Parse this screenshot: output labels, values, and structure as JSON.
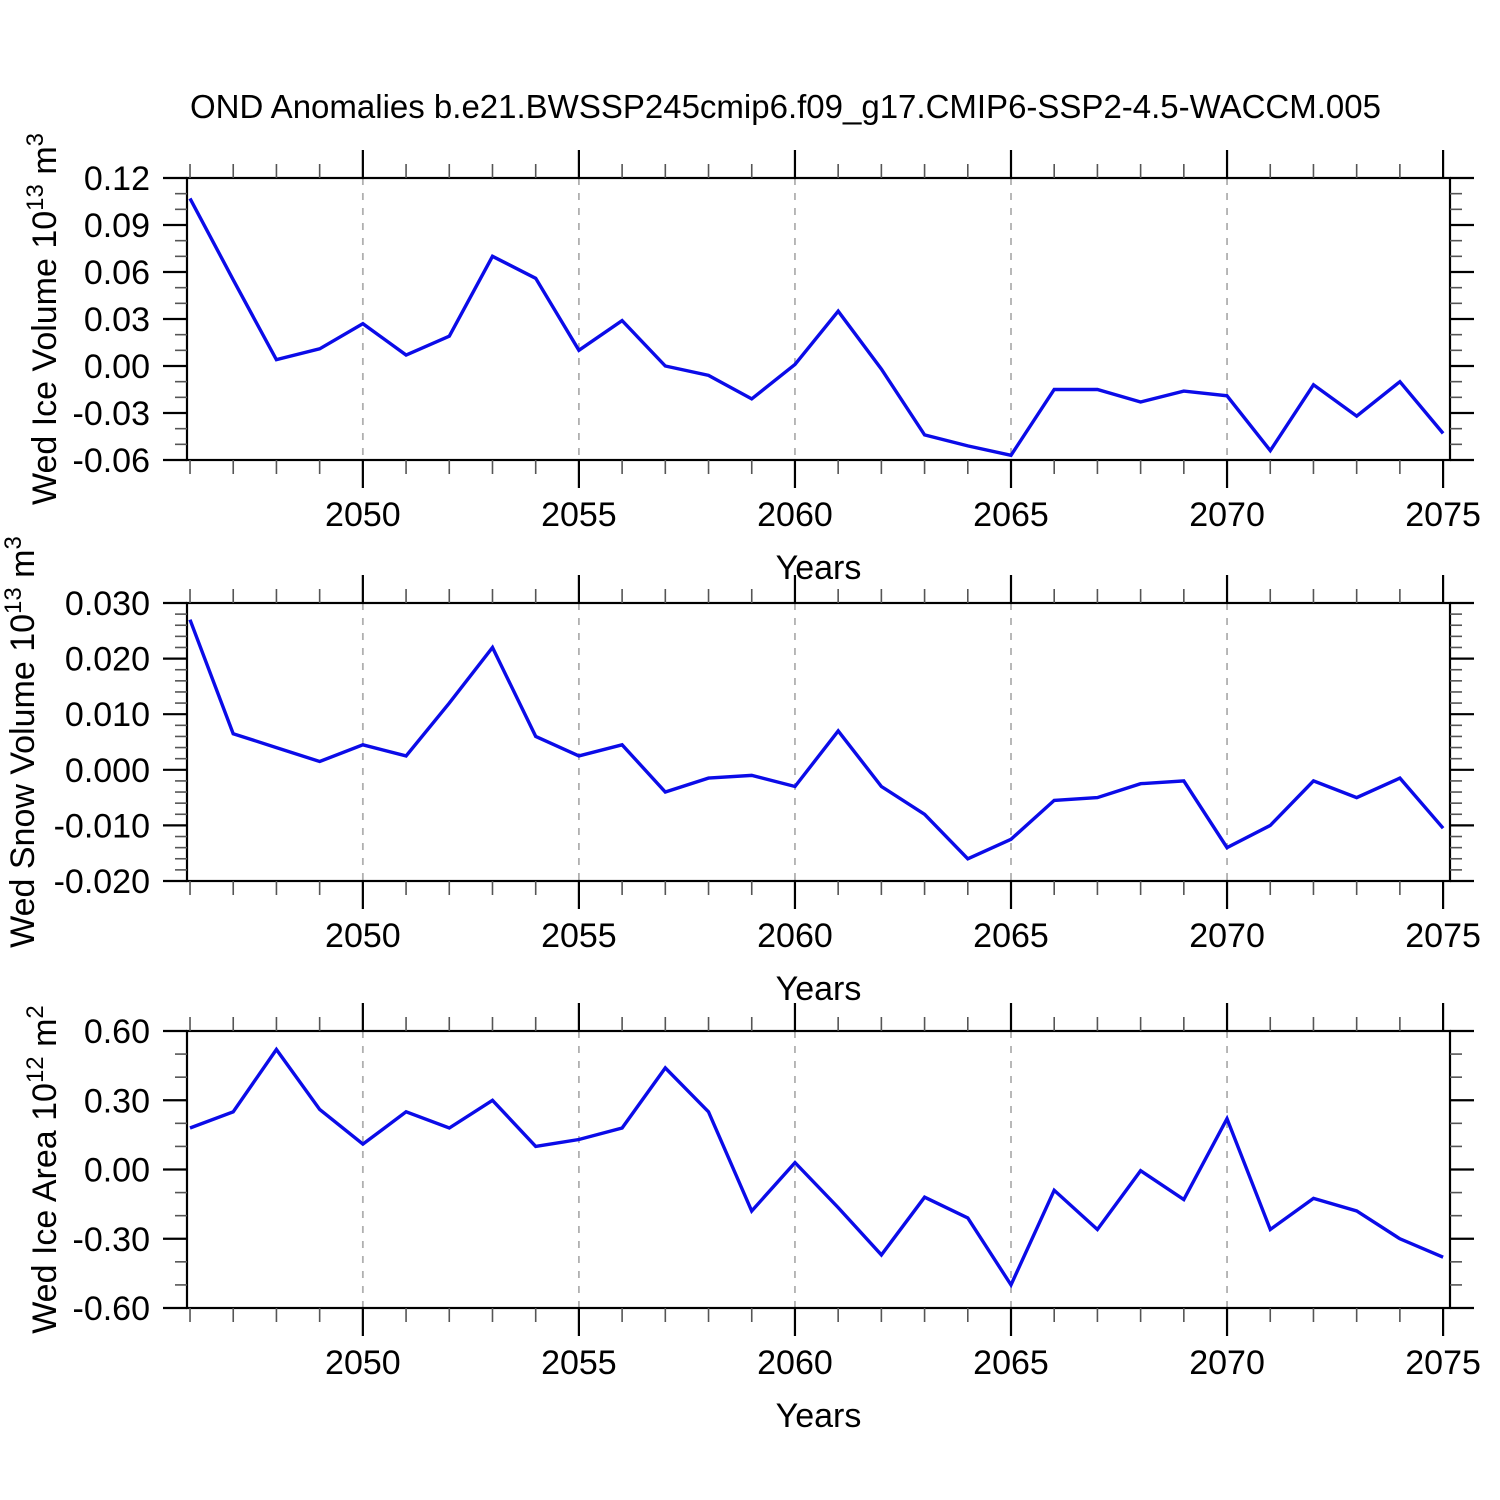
{
  "title": "OND Anomalies b.e21.BWSSP245cmip6.f09_g17.CMIP6-SSP2-4.5-WACCM.005",
  "colors": {
    "line": "#0b0be8",
    "grid": "#b0b0b0",
    "axis": "#000000",
    "minor_tick": "#555555"
  },
  "x_axis": {
    "label": "Years",
    "range": [
      2045.93,
      2075.16
    ],
    "major_ticks": [
      2050,
      2055,
      2060,
      2065,
      2070,
      2075
    ],
    "major_tick_labels": [
      "2050",
      "2055",
      "2060",
      "2065",
      "2070",
      "2075"
    ],
    "minor_tick_step": 1,
    "gridline_years": [
      2050,
      2055,
      2060,
      2065,
      2070
    ]
  },
  "years": [
    2046,
    2047,
    2048,
    2049,
    2050,
    2051,
    2052,
    2053,
    2054,
    2055,
    2056,
    2057,
    2058,
    2059,
    2060,
    2061,
    2062,
    2063,
    2064,
    2065,
    2066,
    2067,
    2068,
    2069,
    2070,
    2071,
    2072,
    2073,
    2074,
    2075
  ],
  "chart_data": [
    {
      "type": "line",
      "name": "wed-ice-volume",
      "ylabel_plain": "Wed Ice Volume 10^13 m^3",
      "ylabel_segments": [
        {
          "text": "Wed Ice Volume 10",
          "sup": false
        },
        {
          "text": "13",
          "sup": true
        },
        {
          "text": " m",
          "sup": false
        },
        {
          "text": "3",
          "sup": true
        }
      ],
      "xlabel": "Years",
      "ylim": [
        -0.06,
        0.12
      ],
      "ytick_values": [
        0.12,
        0.09,
        0.06,
        0.03,
        0.0,
        -0.03,
        -0.06
      ],
      "ytick_labels": [
        "0.12",
        "0.09",
        "0.06",
        "0.03",
        "0.00",
        "-0.03",
        "-0.06"
      ],
      "yminor_step": 0.01,
      "grid": "x-dashed",
      "legend": "none",
      "values": [
        0.107,
        0.055,
        0.004,
        0.011,
        0.027,
        0.007,
        0.019,
        0.07,
        0.056,
        0.01,
        0.029,
        0.0,
        -0.006,
        -0.021,
        0.001,
        0.035,
        -0.002,
        -0.044,
        -0.051,
        -0.057,
        -0.015,
        -0.015,
        -0.023,
        -0.016,
        -0.019,
        -0.054,
        -0.012,
        -0.032,
        -0.01,
        -0.043
      ]
    },
    {
      "type": "line",
      "name": "wed-snow-volume",
      "ylabel_plain": "Wed Snow Volume 10^13 m^3",
      "ylabel_segments": [
        {
          "text": "Wed Snow Volume 10",
          "sup": false
        },
        {
          "text": "13",
          "sup": true
        },
        {
          "text": " m",
          "sup": false
        },
        {
          "text": "3",
          "sup": true
        }
      ],
      "xlabel": "Years",
      "ylim": [
        -0.02,
        0.03
      ],
      "ytick_values": [
        0.03,
        0.02,
        0.01,
        0.0,
        -0.01,
        -0.02
      ],
      "ytick_labels": [
        "0.030",
        "0.020",
        "0.010",
        "0.000",
        "-0.010",
        "-0.020"
      ],
      "yminor_step": 0.002,
      "grid": "x-dashed",
      "legend": "none",
      "values": [
        0.027,
        0.0065,
        0.004,
        0.0015,
        0.0045,
        0.0025,
        0.012,
        0.022,
        0.006,
        0.0025,
        0.0045,
        -0.004,
        -0.0015,
        -0.001,
        -0.003,
        0.007,
        -0.003,
        -0.008,
        -0.016,
        -0.0125,
        -0.0055,
        -0.005,
        -0.0025,
        -0.002,
        -0.014,
        -0.01,
        -0.002,
        -0.005,
        -0.0015,
        -0.0105
      ]
    },
    {
      "type": "line",
      "name": "wed-ice-area",
      "ylabel_plain": "Wed Ice Area 10^12 m^2",
      "ylabel_segments": [
        {
          "text": "Wed Ice Area 10",
          "sup": false
        },
        {
          "text": "12",
          "sup": true
        },
        {
          "text": " m",
          "sup": false
        },
        {
          "text": "2",
          "sup": true
        }
      ],
      "xlabel": "Years",
      "ylim": [
        -0.6,
        0.6
      ],
      "ytick_values": [
        0.6,
        0.3,
        0.0,
        -0.3,
        -0.6
      ],
      "ytick_labels": [
        "0.60",
        "0.30",
        "0.00",
        "-0.30",
        "-0.60"
      ],
      "yminor_step": 0.1,
      "grid": "x-dashed",
      "legend": "none",
      "values": [
        0.18,
        0.25,
        0.52,
        0.26,
        0.11,
        0.25,
        0.18,
        0.3,
        0.1,
        0.13,
        0.18,
        0.44,
        0.25,
        -0.18,
        0.03,
        -0.165,
        -0.37,
        -0.12,
        -0.21,
        -0.5,
        -0.09,
        -0.26,
        -0.005,
        -0.13,
        0.22,
        -0.26,
        -0.125,
        -0.18,
        -0.3,
        -0.38
      ]
    }
  ]
}
